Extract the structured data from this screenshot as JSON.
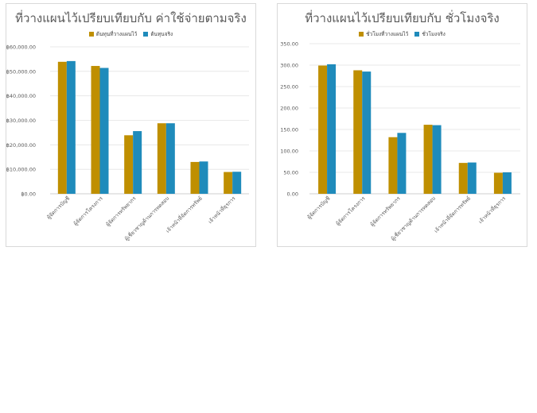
{
  "chart_data": [
    {
      "type": "bar",
      "title": "ที่วางแผนไว้เปรียบเทียบกับ ค่าใช้จ่ายตามจริง",
      "categories": [
        "ผู้จัดการบัญชี",
        "ผู้จัดการโครงการ",
        "ผู้จัดการทรัพยากร",
        "ผู้เชี่ยวชาญด้านการทดสอบ",
        "เจ้าหน้าที่จัดการทรัพย์",
        "เจ้าหน้าที่ธุรการ"
      ],
      "series": [
        {
          "name": "ต้นทุนที่วางแผนไว้",
          "color": "#bf8f00",
          "values": [
            53900,
            52200,
            23900,
            28800,
            13000,
            8900
          ]
        },
        {
          "name": "ต้นทุนจริง",
          "color": "#1f8bbb",
          "values": [
            54200,
            51400,
            25600,
            28800,
            13200,
            9000
          ]
        }
      ],
      "ylim": [
        0,
        60000
      ],
      "yticks": [
        "฿0.00",
        "฿10,000.00",
        "฿20,000.00",
        "฿30,000.00",
        "฿40,000.00",
        "฿50,000.00",
        "฿60,000.00"
      ],
      "grid": true,
      "legend": "top"
    },
    {
      "type": "bar",
      "title": "ที่วางแผนไว้เปรียบเทียบกับ ชั่วโมงจริง",
      "categories": [
        "ผู้จัดการบัญชี",
        "ผู้จัดการโครงการ",
        "ผู้จัดการทรัพยากร",
        "ผู้เชี่ยวชาญด้านการทดสอบ",
        "เจ้าหน้าที่จัดการทรัพย์",
        "เจ้าหน้าที่ธุรการ"
      ],
      "series": [
        {
          "name": "ชั่วโมงที่วางแผนไว้",
          "color": "#bf8f00",
          "values": [
            299,
            288,
            132,
            161,
            72,
            49
          ]
        },
        {
          "name": "ชั่วโมงจริง",
          "color": "#1f8bbb",
          "values": [
            302,
            285,
            142,
            160,
            73,
            50
          ]
        }
      ],
      "ylim": [
        0,
        350
      ],
      "yticks": [
        "0.00",
        "50.00",
        "100.00",
        "150.00",
        "200.00",
        "250.00",
        "300.00",
        "350.00"
      ],
      "grid": true,
      "legend": "top"
    }
  ]
}
